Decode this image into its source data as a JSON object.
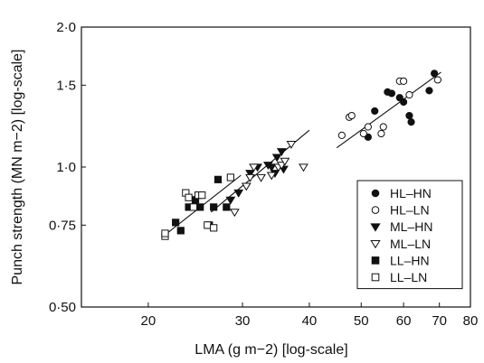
{
  "chart_data": {
    "type": "scatter",
    "xlabel": "LMA (g m−2) [log-scale]",
    "ylabel": "Punch strength (MN m−2) [log-scale]",
    "x_scale": "log",
    "y_scale": "log",
    "xlim": [
      15,
      80
    ],
    "ylim": [
      0.5,
      2.0
    ],
    "x_ticks": [
      20,
      30,
      40,
      50,
      60,
      70,
      80
    ],
    "x_tick_labels": [
      "20",
      "30",
      "40",
      "50",
      "60",
      "70",
      "80"
    ],
    "y_ticks": [
      0.5,
      0.75,
      1.0,
      1.5,
      2.0
    ],
    "y_tick_labels": [
      "0·50",
      "0·75",
      "1·0",
      "1·5",
      "2·0"
    ],
    "grid": false,
    "legend_position": "bottom-right",
    "series": [
      {
        "name": "HL–HN",
        "marker": "circle",
        "filled": true,
        "points": [
          [
            51.5,
            1.16
          ],
          [
            53,
            1.32
          ],
          [
            56,
            1.45
          ],
          [
            57,
            1.44
          ],
          [
            59,
            1.41
          ],
          [
            60,
            1.38
          ],
          [
            61.5,
            1.29
          ],
          [
            62,
            1.25
          ],
          [
            67,
            1.46
          ],
          [
            68.5,
            1.59
          ]
        ]
      },
      {
        "name": "HL–LN",
        "marker": "circle",
        "filled": false,
        "points": [
          [
            46,
            1.17
          ],
          [
            47.5,
            1.28
          ],
          [
            48,
            1.29
          ],
          [
            50.5,
            1.18
          ],
          [
            51.5,
            1.22
          ],
          [
            54.5,
            1.18
          ],
          [
            55,
            1.22
          ],
          [
            59,
            1.53
          ],
          [
            60,
            1.53
          ],
          [
            61.5,
            1.43
          ],
          [
            69.5,
            1.54
          ]
        ]
      },
      {
        "name": "ML–HN",
        "marker": "triangle-down",
        "filled": true,
        "points": [
          [
            28.5,
            0.85
          ],
          [
            29.5,
            0.88
          ],
          [
            31,
            0.97
          ],
          [
            32,
            1.0
          ],
          [
            33.5,
            1.01
          ],
          [
            34,
            1.0
          ],
          [
            34.5,
            0.97
          ],
          [
            34.8,
            1.05
          ],
          [
            35.5,
            1.08
          ],
          [
            35.8,
            0.99
          ]
        ]
      },
      {
        "name": "ML–LN",
        "marker": "triangle-down",
        "filled": false,
        "points": [
          [
            29,
            0.8
          ],
          [
            30.5,
            0.91
          ],
          [
            31,
            0.95
          ],
          [
            31.5,
            1.0
          ],
          [
            32.5,
            0.95
          ],
          [
            34,
            0.96
          ],
          [
            35,
            1.0
          ],
          [
            35.5,
            1.01
          ],
          [
            36,
            1.03
          ],
          [
            37,
            1.12
          ],
          [
            39,
            1.0
          ]
        ]
      },
      {
        "name": "LL–HN",
        "marker": "square",
        "filled": true,
        "points": [
          [
            22.5,
            0.76
          ],
          [
            23,
            0.73
          ],
          [
            23.8,
            0.82
          ],
          [
            24.5,
            0.85
          ],
          [
            25,
            0.82
          ],
          [
            26,
            0.75
          ],
          [
            26.5,
            0.82
          ],
          [
            27,
            0.94
          ],
          [
            28,
            0.82
          ]
        ]
      },
      {
        "name": "LL–LN",
        "marker": "square",
        "filled": false,
        "points": [
          [
            21.5,
            0.71
          ],
          [
            21.5,
            0.72
          ],
          [
            23.5,
            0.88
          ],
          [
            23.8,
            0.86
          ],
          [
            24.3,
            0.82
          ],
          [
            24.8,
            0.87
          ],
          [
            25.2,
            0.87
          ],
          [
            25.8,
            0.75
          ],
          [
            26.5,
            0.74
          ],
          [
            28.5,
            0.95
          ]
        ]
      }
    ],
    "fit_lines": [
      {
        "x": [
          21.5,
          29.8
        ],
        "y": [
          0.715,
          0.96
        ]
      },
      {
        "x": [
          26.2,
          40
        ],
        "y": [
          0.8,
          1.2
        ]
      },
      {
        "x": [
          45,
          70.5
        ],
        "y": [
          1.1,
          1.6
        ]
      }
    ]
  }
}
